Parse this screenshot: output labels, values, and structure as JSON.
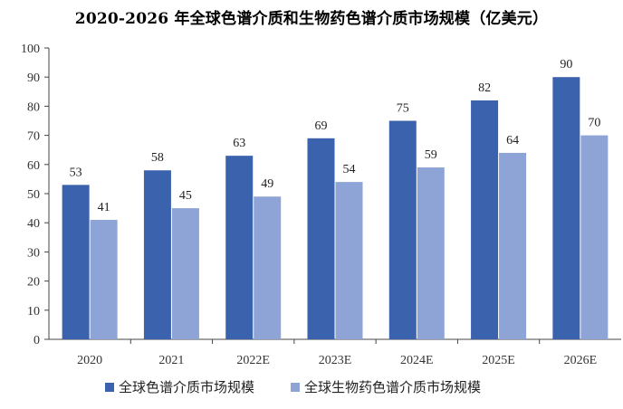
{
  "title": "2020-2026 年全球色谱介质和生物药色谱介质市场规模（亿美元）",
  "chart_data": {
    "type": "bar",
    "title": "2020-2026 年全球色谱介质和生物药色谱介质市场规模（亿美元）",
    "xlabel": "",
    "ylabel": "",
    "categories": [
      "2020",
      "2021",
      "2022E",
      "2023E",
      "2024E",
      "2025E",
      "2026E"
    ],
    "series": [
      {
        "name": "全球色谱介质市场规模",
        "values": [
          53,
          58,
          63,
          69,
          75,
          82,
          90
        ],
        "color": "#3b62ad"
      },
      {
        "name": "全球生物药色谱介质市场规模",
        "values": [
          41,
          45,
          49,
          54,
          59,
          64,
          70
        ],
        "color": "#8fa4d6"
      }
    ],
    "ylim": [
      0,
      100
    ],
    "yticks": [
      0,
      10,
      20,
      30,
      40,
      50,
      60,
      70,
      80,
      90,
      100
    ],
    "grid": false,
    "legend_position": "bottom"
  }
}
